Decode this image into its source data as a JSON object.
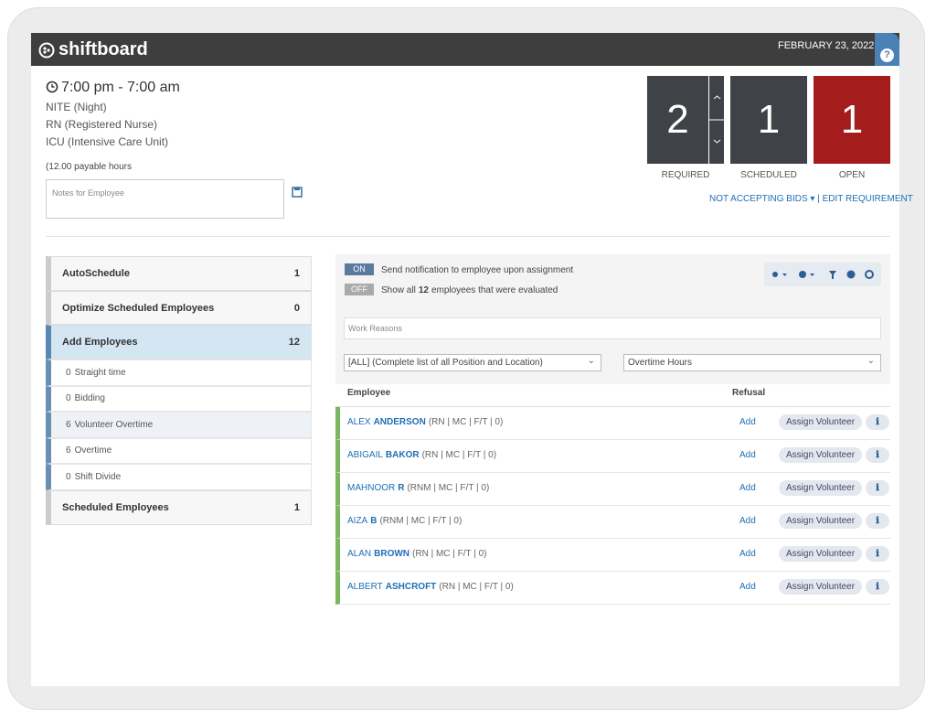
{
  "header": {
    "logo": "shiftboard",
    "date": "FEBRUARY 23, 2022",
    "help": "?"
  },
  "shift": {
    "time": "7:00 pm - 7:00 am",
    "lines": [
      "NITE (Night)",
      "RN (Registered Nurse)",
      "ICU (Intensive Care Unit)"
    ],
    "hours": "(12.00 payable hours",
    "notes_placeholder": "Notes for Employee"
  },
  "counters": [
    {
      "value": 2,
      "label": "REQUIRED"
    },
    {
      "value": 1,
      "label": "SCHEDULED"
    },
    {
      "value": 1,
      "label": "OPEN"
    }
  ],
  "links": {
    "bids": "NOT ACCEPTING BIDS",
    "separator": "|",
    "edit": "EDIT REQUIREMENT"
  },
  "sidebar": {
    "items": [
      {
        "label": "AutoSchedule",
        "count": 1
      },
      {
        "label": "Optimize Scheduled Employees",
        "count": 0
      },
      {
        "label": "Add Employees",
        "count": 12
      }
    ],
    "sub_items": [
      {
        "count": 0,
        "label": "Straight time"
      },
      {
        "count": 0,
        "label": "Bidding"
      },
      {
        "count": 6,
        "label": "Volunteer Overtime"
      },
      {
        "count": 6,
        "label": "Overtime"
      },
      {
        "count": 0,
        "label": "Shift Divide"
      }
    ],
    "last": {
      "label": "Scheduled Employees",
      "count": 1
    }
  },
  "toggles": [
    {
      "state": "ON",
      "text": "Send notification to employee upon assignment"
    },
    {
      "state": "OFF",
      "before": "Show all",
      "bold": "12",
      "after": "employees that were evaluated"
    }
  ],
  "work_reasons": "Work Reasons",
  "selects": [
    "[ALL] (Complete list of all Position and Location)",
    "Overtime Hours"
  ],
  "table": {
    "headers": [
      "Employee",
      "Refusal"
    ],
    "rows": [
      {
        "first": "ALEX",
        "last": "ANDERSON",
        "details": "(RN | MC | F/T | 0)",
        "action": "Add",
        "button": "Assign Volunteer"
      },
      {
        "first": "ABIGAIL",
        "last": "BAKOR",
        "details": "(RN | MC | F/T | 0)",
        "action": "Add",
        "button": "Assign Volunteer"
      },
      {
        "first": "MAHNOOR",
        "last": "R",
        "details": "(RNM | MC | F/T | 0)",
        "action": "Add",
        "button": "Assign Volunteer"
      },
      {
        "first": "AIZA",
        "last": "B",
        "details": "(RNM | MC | F/T | 0)",
        "action": "Add",
        "button": "Assign Volunteer"
      },
      {
        "first": "ALAN",
        "last": "BROWN",
        "details": "(RN | MC | F/T | 0)",
        "action": "Add",
        "button": "Assign Volunteer"
      },
      {
        "first": "ALBERT",
        "last": "ASHCROFT",
        "details": "(RN | MC | F/T | 0)",
        "action": "Add",
        "button": "Assign Volunteer"
      }
    ]
  }
}
